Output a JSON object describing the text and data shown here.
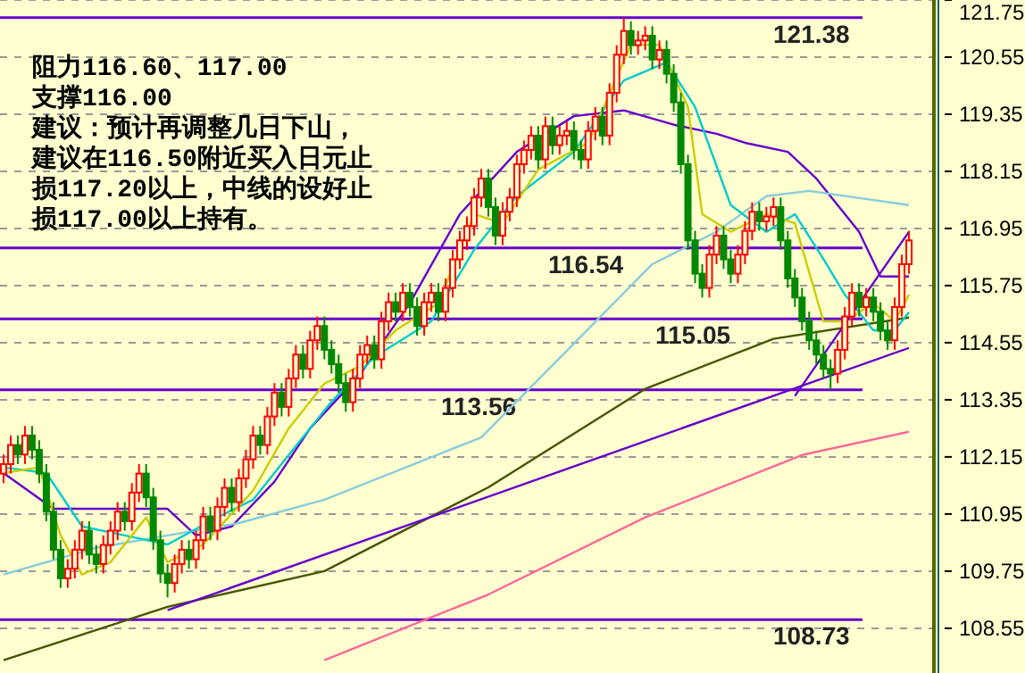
{
  "chart_data": {
    "type": "candlestick",
    "categories": [
      null,
      null,
      null,
      null,
      null,
      null,
      null,
      null,
      null,
      null,
      null,
      null,
      null,
      null,
      null,
      null,
      null,
      null,
      null,
      null,
      null,
      null,
      null,
      null,
      null,
      null,
      null,
      null,
      null,
      null,
      null,
      null,
      null,
      null,
      null,
      null,
      null,
      null,
      null,
      null,
      null,
      null,
      null,
      null,
      null,
      null,
      null,
      null,
      null,
      null,
      null,
      null,
      null,
      null,
      null,
      null,
      null,
      null,
      null,
      null,
      null,
      null,
      null,
      null,
      null,
      null,
      null,
      null,
      null,
      null,
      null,
      null,
      null,
      null,
      null,
      null,
      null,
      null,
      null,
      null,
      null,
      null,
      null,
      null,
      null,
      null,
      null,
      null,
      null,
      null,
      null,
      null,
      null,
      null,
      null,
      null,
      null,
      null,
      null,
      null,
      null,
      null,
      null,
      null,
      null,
      null,
      null,
      null,
      null,
      null,
      null,
      null,
      null,
      null,
      null,
      null,
      null,
      null,
      null,
      null,
      null,
      null,
      null,
      null,
      null,
      null,
      null,
      null
    ],
    "ohlc": [
      [
        111.8,
        112.2,
        111.6,
        112.0
      ],
      [
        112.0,
        112.6,
        111.8,
        112.4
      ],
      [
        112.4,
        112.6,
        112.0,
        112.2
      ],
      [
        112.2,
        112.8,
        112.0,
        112.6
      ],
      [
        112.6,
        112.8,
        112.1,
        112.3
      ],
      [
        112.3,
        112.5,
        111.6,
        111.8
      ],
      [
        111.8,
        112.0,
        110.8,
        111.0
      ],
      [
        111.0,
        111.2,
        110.0,
        110.2
      ],
      [
        110.2,
        110.4,
        109.4,
        109.6
      ],
      [
        109.6,
        110.0,
        109.4,
        109.8
      ],
      [
        109.8,
        110.4,
        109.6,
        110.2
      ],
      [
        110.2,
        110.8,
        110.0,
        110.6
      ],
      [
        110.6,
        110.8,
        109.9,
        110.1
      ],
      [
        110.1,
        110.3,
        109.7,
        109.9
      ],
      [
        109.9,
        110.5,
        109.7,
        110.3
      ],
      [
        110.3,
        110.8,
        110.1,
        110.6
      ],
      [
        110.6,
        111.2,
        110.4,
        111.0
      ],
      [
        111.0,
        111.2,
        110.6,
        110.8
      ],
      [
        110.8,
        111.6,
        110.6,
        111.4
      ],
      [
        111.4,
        112.0,
        111.2,
        111.8
      ],
      [
        111.8,
        112.0,
        111.1,
        111.3
      ],
      [
        111.3,
        111.5,
        110.2,
        110.4
      ],
      [
        110.4,
        110.6,
        109.5,
        109.7
      ],
      [
        109.7,
        109.9,
        109.2,
        109.5
      ],
      [
        109.5,
        110.1,
        109.3,
        109.9
      ],
      [
        109.9,
        110.4,
        109.7,
        110.2
      ],
      [
        110.2,
        110.4,
        109.8,
        110.0
      ],
      [
        110.0,
        110.6,
        109.8,
        110.4
      ],
      [
        110.4,
        111.1,
        110.2,
        110.9
      ],
      [
        110.9,
        111.1,
        110.4,
        110.6
      ],
      [
        110.6,
        111.3,
        110.4,
        111.1
      ],
      [
        111.1,
        111.7,
        110.9,
        111.5
      ],
      [
        111.5,
        111.7,
        111.0,
        111.2
      ],
      [
        111.2,
        111.9,
        111.0,
        111.7
      ],
      [
        111.7,
        112.3,
        111.5,
        112.1
      ],
      [
        112.1,
        112.8,
        111.9,
        112.6
      ],
      [
        112.6,
        112.8,
        112.2,
        112.4
      ],
      [
        112.4,
        113.2,
        112.2,
        113.0
      ],
      [
        113.0,
        113.7,
        112.8,
        113.5
      ],
      [
        113.5,
        113.7,
        113.0,
        113.2
      ],
      [
        113.2,
        114.0,
        113.0,
        113.8
      ],
      [
        113.8,
        114.5,
        113.6,
        114.3
      ],
      [
        114.3,
        114.5,
        113.8,
        114.0
      ],
      [
        114.0,
        114.8,
        113.8,
        114.6
      ],
      [
        114.6,
        115.1,
        114.4,
        114.9
      ],
      [
        114.9,
        115.1,
        114.2,
        114.4
      ],
      [
        114.4,
        114.6,
        113.9,
        114.1
      ],
      [
        114.1,
        114.3,
        113.5,
        113.7
      ],
      [
        113.7,
        113.9,
        113.1,
        113.3
      ],
      [
        113.3,
        114.0,
        113.1,
        113.8
      ],
      [
        113.8,
        114.5,
        113.6,
        114.3
      ],
      [
        114.3,
        114.7,
        114.1,
        114.5
      ],
      [
        114.5,
        114.7,
        114.0,
        114.2
      ],
      [
        114.2,
        115.2,
        114.0,
        115.0
      ],
      [
        115.0,
        115.6,
        114.8,
        115.4
      ],
      [
        115.4,
        115.6,
        115.0,
        115.2
      ],
      [
        115.2,
        115.8,
        115.0,
        115.6
      ],
      [
        115.6,
        115.8,
        115.1,
        115.3
      ],
      [
        115.3,
        115.5,
        114.7,
        114.9
      ],
      [
        114.9,
        115.6,
        114.7,
        115.4
      ],
      [
        115.4,
        115.8,
        115.2,
        115.6
      ],
      [
        115.6,
        115.8,
        115.0,
        115.2
      ],
      [
        115.2,
        115.9,
        115.0,
        115.7
      ],
      [
        115.7,
        116.5,
        115.5,
        116.3
      ],
      [
        116.3,
        116.9,
        116.1,
        116.7
      ],
      [
        116.7,
        117.2,
        116.5,
        117.0
      ],
      [
        117.0,
        117.8,
        116.8,
        117.6
      ],
      [
        117.6,
        118.2,
        117.4,
        118.0
      ],
      [
        118.0,
        118.2,
        117.2,
        117.4
      ],
      [
        117.4,
        117.6,
        116.6,
        116.8
      ],
      [
        116.8,
        117.5,
        116.6,
        117.3
      ],
      [
        117.3,
        117.8,
        117.1,
        117.6
      ],
      [
        117.6,
        118.5,
        117.4,
        118.3
      ],
      [
        118.3,
        118.8,
        118.1,
        118.6
      ],
      [
        118.6,
        119.1,
        118.4,
        118.9
      ],
      [
        118.9,
        119.1,
        118.2,
        118.4
      ],
      [
        118.4,
        119.3,
        118.2,
        119.1
      ],
      [
        119.1,
        119.3,
        118.5,
        118.7
      ],
      [
        118.7,
        119.1,
        118.5,
        118.9
      ],
      [
        118.9,
        119.2,
        118.7,
        119.0
      ],
      [
        119.0,
        119.2,
        118.4,
        118.6
      ],
      [
        118.6,
        118.8,
        118.2,
        118.4
      ],
      [
        118.4,
        119.2,
        118.2,
        119.0
      ],
      [
        119.0,
        119.5,
        118.8,
        119.3
      ],
      [
        119.3,
        119.5,
        118.7,
        118.9
      ],
      [
        118.9,
        120.0,
        118.7,
        119.8
      ],
      [
        119.8,
        120.8,
        119.6,
        120.6
      ],
      [
        120.6,
        121.38,
        120.4,
        121.1
      ],
      [
        121.1,
        121.3,
        120.6,
        120.8
      ],
      [
        120.8,
        121.1,
        120.6,
        120.9
      ],
      [
        120.9,
        121.2,
        120.7,
        121.0
      ],
      [
        121.0,
        121.2,
        120.3,
        120.5
      ],
      [
        120.5,
        120.9,
        120.3,
        120.7
      ],
      [
        120.7,
        120.9,
        120.0,
        120.2
      ],
      [
        120.2,
        120.4,
        119.4,
        119.6
      ],
      [
        119.6,
        119.8,
        118.1,
        118.3
      ],
      [
        118.3,
        118.5,
        116.5,
        116.7
      ],
      [
        116.7,
        116.9,
        115.8,
        116.0
      ],
      [
        116.0,
        116.2,
        115.5,
        115.7
      ],
      [
        115.7,
        116.6,
        115.5,
        116.4
      ],
      [
        116.4,
        117.0,
        116.2,
        116.8
      ],
      [
        116.8,
        117.0,
        116.1,
        116.3
      ],
      [
        116.3,
        116.5,
        115.8,
        116.0
      ],
      [
        116.0,
        116.6,
        115.8,
        116.4
      ],
      [
        116.4,
        117.1,
        116.2,
        116.9
      ],
      [
        116.9,
        117.5,
        116.7,
        117.3
      ],
      [
        117.3,
        117.5,
        116.9,
        117.1
      ],
      [
        117.1,
        117.4,
        116.9,
        117.2
      ],
      [
        117.2,
        117.6,
        117.0,
        117.4
      ],
      [
        117.4,
        117.6,
        116.5,
        116.7
      ],
      [
        116.7,
        116.9,
        115.7,
        115.9
      ],
      [
        115.9,
        116.1,
        115.3,
        115.5
      ],
      [
        115.5,
        115.7,
        114.8,
        115.0
      ],
      [
        115.0,
        115.2,
        114.4,
        114.6
      ],
      [
        114.6,
        114.8,
        114.1,
        114.3
      ],
      [
        114.3,
        114.5,
        113.8,
        114.0
      ],
      [
        114.0,
        114.2,
        113.56,
        113.9
      ],
      [
        113.9,
        114.6,
        113.7,
        114.4
      ],
      [
        114.4,
        115.3,
        114.2,
        115.1
      ],
      [
        115.1,
        115.8,
        114.9,
        115.6
      ],
      [
        115.6,
        115.8,
        115.1,
        115.3
      ],
      [
        115.3,
        115.7,
        115.1,
        115.5
      ],
      [
        115.5,
        115.7,
        115.0,
        115.2
      ],
      [
        115.2,
        115.4,
        114.6,
        114.8
      ],
      [
        114.8,
        115.0,
        114.4,
        114.6
      ],
      [
        114.6,
        115.5,
        114.4,
        115.3
      ],
      [
        115.3,
        116.4,
        115.1,
        116.2
      ],
      [
        116.2,
        116.9,
        116.0,
        116.7
      ]
    ],
    "series": [
      {
        "type": "line",
        "color": "#6600cc",
        "values": [
          111.81,
          null,
          null,
          null,
          null,
          null,
          null,
          111.06,
          null,
          null,
          null,
          null,
          null,
          null,
          null,
          null,
          null,
          null,
          null,
          null,
          null,
          null,
          null,
          111.06,
          null,
          null,
          null,
          110.5,
          null,
          null,
          null,
          null,
          110.69,
          null,
          null,
          null,
          null,
          null,
          111.63,
          null,
          null,
          null,
          null,
          112.75,
          null,
          null,
          null,
          null,
          null,
          null,
          113.88,
          null,
          null,
          null,
          null,
          null,
          null,
          115.38,
          null,
          null,
          null,
          null,
          null,
          null,
          117.25,
          null,
          null,
          null,
          null,
          null,
          null,
          null,
          118.56,
          null,
          null,
          null,
          null,
          null,
          null,
          null,
          119.31,
          null,
          null,
          null,
          null,
          null,
          null,
          119.43,
          null,
          null,
          null,
          null,
          null,
          null,
          119.13,
          null,
          null,
          null,
          null,
          null,
          118.94,
          null,
          null,
          null,
          118.75,
          null,
          null,
          null,
          null,
          null,
          118.56,
          null,
          null,
          null,
          118.0,
          null,
          null,
          null,
          null,
          null,
          116.88,
          null,
          null,
          115.94,
          null,
          null,
          null,
          115.94
        ]
      },
      {
        "type": "line",
        "color": "#88ccdd",
        "values": [
          109.68,
          null,
          null,
          null,
          null,
          null,
          null,
          null,
          null,
          null,
          null,
          null,
          null,
          110.24,
          null,
          null,
          null,
          null,
          null,
          null,
          null,
          null,
          null,
          110.5,
          null,
          null,
          null,
          null,
          null,
          null,
          null,
          null,
          null,
          110.76,
          null,
          null,
          null,
          null,
          null,
          null,
          null,
          null,
          null,
          null,
          null,
          111.25,
          null,
          null,
          null,
          null,
          null,
          null,
          null,
          null,
          null,
          null,
          null,
          null,
          null,
          null,
          null,
          null,
          null,
          null,
          null,
          null,
          null,
          112.56,
          null,
          null,
          null,
          null,
          null,
          null,
          null,
          null,
          null,
          null,
          null,
          null,
          null,
          null,
          null,
          null,
          null,
          null,
          null,
          null,
          null,
          null,
          null,
          116.2,
          null,
          null,
          null,
          null,
          null,
          null,
          null,
          null,
          116.88,
          null,
          null,
          null,
          null,
          null,
          null,
          117.63,
          null,
          null,
          null,
          null,
          null,
          117.74,
          null,
          null,
          null,
          null,
          null,
          null,
          null,
          null,
          null,
          null,
          null,
          null,
          null,
          117.44
        ]
      },
      {
        "type": "line",
        "color": "#445500",
        "values": [
          107.88,
          null,
          null,
          null,
          null,
          null,
          null,
          null,
          null,
          null,
          null,
          null,
          null,
          null,
          null,
          null,
          null,
          null,
          null,
          null,
          null,
          null,
          null,
          109.0,
          null,
          null,
          null,
          null,
          null,
          null,
          null,
          null,
          null,
          null,
          null,
          null,
          null,
          null,
          null,
          null,
          null,
          null,
          null,
          null,
          null,
          109.75,
          null,
          null,
          null,
          null,
          null,
          null,
          null,
          null,
          null,
          null,
          null,
          null,
          null,
          null,
          null,
          null,
          null,
          null,
          null,
          null,
          null,
          null,
          111.51,
          null,
          null,
          null,
          null,
          null,
          null,
          null,
          null,
          null,
          null,
          null,
          null,
          null,
          null,
          null,
          null,
          null,
          null,
          null,
          null,
          null,
          113.58,
          null,
          null,
          null,
          null,
          null,
          null,
          null,
          null,
          null,
          null,
          null,
          null,
          null,
          null,
          null,
          null,
          null,
          114.63,
          null,
          null,
          null,
          null,
          null,
          null,
          null,
          null,
          null,
          null,
          null,
          null,
          null,
          null,
          null,
          null,
          null,
          null,
          115.08
        ]
      },
      {
        "type": "line",
        "color": "#ff6699",
        "values": [
          null,
          null,
          null,
          null,
          null,
          null,
          null,
          null,
          null,
          null,
          null,
          null,
          null,
          null,
          null,
          null,
          null,
          null,
          null,
          null,
          null,
          null,
          null,
          null,
          null,
          null,
          null,
          null,
          null,
          null,
          null,
          null,
          null,
          null,
          null,
          null,
          null,
          null,
          null,
          null,
          null,
          null,
          null,
          null,
          null,
          107.88,
          null,
          null,
          null,
          null,
          null,
          null,
          null,
          null,
          null,
          null,
          null,
          null,
          null,
          null,
          null,
          null,
          null,
          null,
          null,
          null,
          null,
          null,
          109.26,
          null,
          null,
          null,
          null,
          null,
          null,
          null,
          null,
          null,
          null,
          null,
          null,
          null,
          null,
          null,
          null,
          null,
          null,
          null,
          null,
          null,
          110.88,
          null,
          null,
          null,
          null,
          null,
          null,
          null,
          null,
          null,
          null,
          null,
          null,
          null,
          null,
          null,
          null,
          null,
          null,
          null,
          null,
          null,
          112.19,
          null,
          null,
          null,
          null,
          null,
          null,
          null,
          null,
          null,
          null,
          null,
          null,
          null,
          null,
          112.68
        ]
      },
      {
        "type": "line",
        "color": "#00cccc",
        "values": [
          111.93,
          null,
          null,
          null,
          null,
          null,
          111.81,
          null,
          null,
          null,
          null,
          110.69,
          null,
          null,
          null,
          null,
          null,
          110.5,
          null,
          null,
          null,
          null,
          null,
          110.31,
          null,
          null,
          null,
          null,
          null,
          null,
          110.88,
          null,
          null,
          null,
          null,
          111.25,
          null,
          null,
          null,
          null,
          112.19,
          null,
          null,
          null,
          null,
          null,
          113.31,
          null,
          null,
          null,
          null,
          null,
          114.25,
          null,
          null,
          null,
          null,
          null,
          null,
          null,
          115.0,
          null,
          null,
          null,
          null,
          null,
          116.5,
          null,
          null,
          null,
          null,
          null,
          117.63,
          null,
          null,
          null,
          null,
          null,
          null,
          null,
          118.56,
          null,
          null,
          null,
          null,
          null,
          null,
          120.06,
          null,
          null,
          null,
          null,
          null,
          120.44,
          null,
          null,
          null,
          119.5,
          null,
          null,
          null,
          null,
          117.44,
          null,
          null,
          null,
          null,
          116.88,
          null,
          null,
          null,
          117.25,
          null,
          null,
          null,
          116.31,
          null,
          null,
          115.56,
          null,
          null,
          null,
          114.81,
          null,
          null,
          114.81,
          null,
          115.19
        ]
      },
      {
        "type": "line",
        "color": "#cccc00",
        "values": [
          111.81,
          null,
          null,
          null,
          null,
          111.93,
          null,
          null,
          110.5,
          null,
          null,
          109.68,
          null,
          null,
          null,
          109.94,
          null,
          null,
          null,
          null,
          110.88,
          null,
          null,
          109.94,
          null,
          null,
          null,
          null,
          110.31,
          null,
          null,
          null,
          null,
          null,
          null,
          111.44,
          null,
          null,
          null,
          null,
          112.75,
          null,
          null,
          null,
          null,
          113.69,
          null,
          null,
          null,
          null,
          114.06,
          null,
          null,
          null,
          null,
          114.81,
          null,
          null,
          null,
          null,
          null,
          115.38,
          null,
          null,
          null,
          null,
          117.25,
          null,
          null,
          null,
          117.06,
          null,
          null,
          null,
          null,
          118.19,
          null,
          null,
          null,
          null,
          null,
          null,
          118.75,
          null,
          null,
          null,
          null,
          null,
          120.81,
          null,
          null,
          null,
          120.81,
          null,
          null,
          null,
          119.5,
          null,
          117.25,
          null,
          null,
          null,
          116.88,
          null,
          null,
          null,
          null,
          117.25,
          null,
          null,
          null,
          117.06,
          null,
          null,
          null,
          115.0,
          null,
          null,
          115.0,
          null,
          null,
          null,
          115.38,
          null,
          null,
          115.0,
          null,
          115.56
        ]
      },
      {
        "type": "line",
        "color": "#6600cc",
        "values": [
          null,
          null,
          null,
          null,
          null,
          null,
          null,
          null,
          null,
          null,
          null,
          null,
          null,
          null,
          null,
          null,
          null,
          null,
          null,
          null,
          null,
          null,
          null,
          108.93,
          null,
          null,
          null,
          null,
          null,
          null,
          null,
          null,
          null,
          null,
          null,
          null,
          null,
          null,
          null,
          null,
          null,
          null,
          null,
          null,
          null,
          null,
          null,
          null,
          null,
          null,
          null,
          null,
          null,
          null,
          null,
          null,
          null,
          null,
          null,
          null,
          null,
          null,
          null,
          null,
          null,
          null,
          null,
          null,
          null,
          null,
          null,
          null,
          null,
          null,
          null,
          null,
          null,
          null,
          null,
          null,
          null,
          null,
          null,
          null,
          null,
          null,
          null,
          null,
          null,
          null,
          null,
          null,
          null,
          null,
          null,
          null,
          null,
          null,
          null,
          null,
          null,
          null,
          null,
          null,
          null,
          null,
          null,
          null,
          null,
          null,
          null,
          null,
          null,
          null,
          null,
          null,
          null,
          null,
          null,
          null,
          null,
          null,
          null,
          null,
          null,
          null,
          null,
          114.44
        ]
      },
      {
        "type": "line",
        "color": "#6600cc",
        "values": [
          null,
          null,
          null,
          null,
          null,
          null,
          null,
          null,
          null,
          null,
          null,
          null,
          null,
          null,
          null,
          null,
          null,
          null,
          null,
          null,
          null,
          null,
          null,
          null,
          null,
          null,
          null,
          null,
          null,
          null,
          null,
          null,
          null,
          null,
          null,
          null,
          null,
          null,
          null,
          null,
          null,
          null,
          null,
          null,
          null,
          null,
          null,
          null,
          null,
          null,
          null,
          null,
          null,
          null,
          null,
          null,
          null,
          null,
          null,
          null,
          null,
          null,
          null,
          null,
          null,
          null,
          null,
          null,
          null,
          null,
          null,
          null,
          null,
          null,
          null,
          null,
          null,
          null,
          null,
          null,
          null,
          null,
          null,
          null,
          null,
          null,
          null,
          null,
          null,
          null,
          null,
          null,
          null,
          null,
          null,
          null,
          null,
          null,
          null,
          null,
          null,
          null,
          null,
          null,
          null,
          null,
          null,
          null,
          null,
          null,
          null,
          113.43,
          null,
          null,
          null,
          null,
          null,
          null,
          null,
          null,
          null,
          null,
          null,
          null,
          null,
          null,
          null,
          116.88
        ]
      }
    ],
    "ylim": [
      107.61,
      121.75
    ],
    "yticks": [
      121.75,
      120.55,
      119.35,
      118.15,
      116.95,
      115.75,
      114.55,
      113.35,
      112.15,
      110.95,
      109.75,
      108.55
    ],
    "tick_labels": "y",
    "grid": "y",
    "ref_lines": [
      {
        "axis": "y",
        "value": 121.38,
        "label": "121.38",
        "color": "#6600cc"
      },
      {
        "axis": "y",
        "value": 116.54,
        "label": "116.54",
        "color": "#6600cc"
      },
      {
        "axis": "y",
        "value": 115.05,
        "label": "115.05",
        "color": "#6600cc"
      },
      {
        "axis": "y",
        "value": 113.56,
        "label": "113.56",
        "color": "#6600cc"
      },
      {
        "axis": "y",
        "value": 108.73,
        "label": "108.73",
        "color": "#6600cc"
      }
    ],
    "annotations": [
      "阻力116.60、117.00",
      "支撑116.00",
      "建议：预计再调整几日下山，",
      "建议在116.50附近买入日元止",
      "损117.20以上，中线的设好止",
      "损117.00以上持有。"
    ]
  }
}
